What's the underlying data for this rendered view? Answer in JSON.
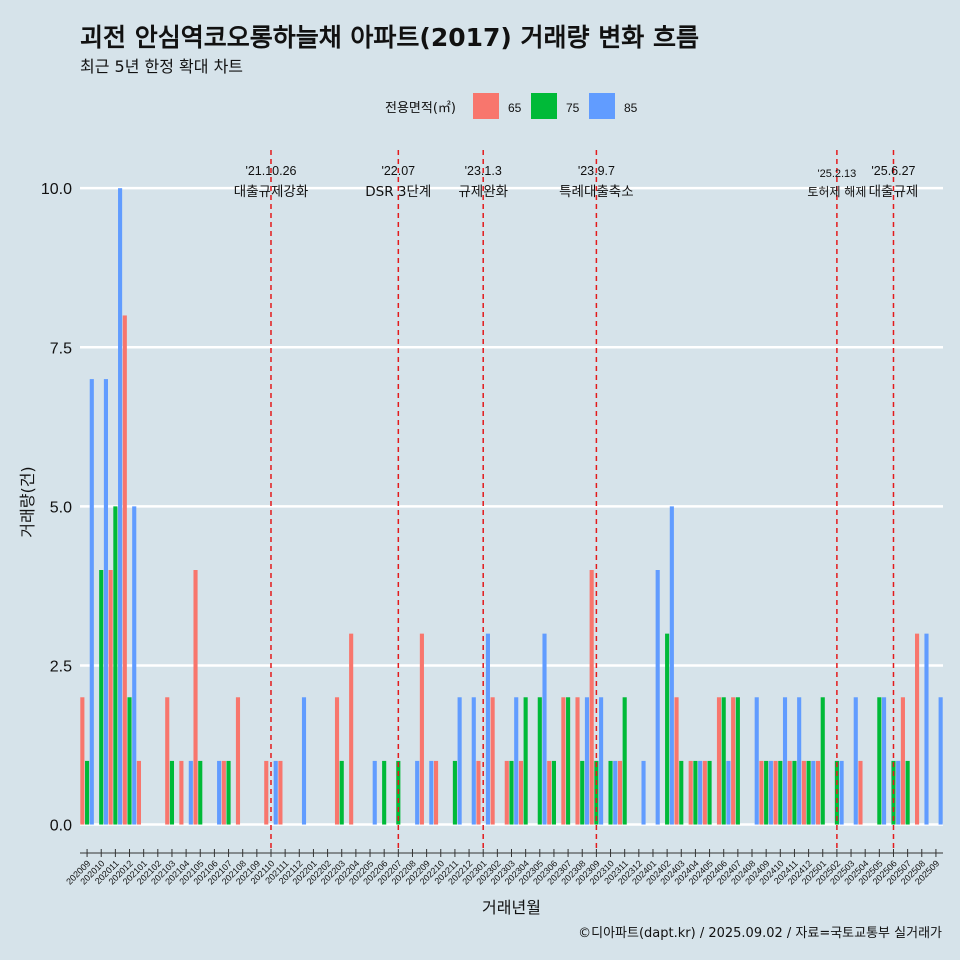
{
  "title": "괴전 안심역코오롱하늘채 아파트(2017) 거래량 변화 흐름",
  "subtitle": "최근 5년 한정 확대 차트",
  "caption": "©디아파트(dapt.kr) / 2025.09.02 / 자료=국토교통부 실거래가",
  "colors": {
    "65": "#f8766d",
    "75": "#00ba38",
    "85": "#619cff",
    "background": "#d6e3ea",
    "grid": "#ffffff",
    "event_line": "#e31a1c"
  },
  "chart_data": {
    "type": "bar",
    "xlabel": "거래년월",
    "ylabel": "거래량(건)",
    "ylim": [
      -0.4,
      10.6
    ],
    "yticks": [
      "0.0",
      "2.5",
      "5.0",
      "7.5",
      "10.0"
    ],
    "legend": {
      "title": "전용면적(㎡)",
      "position": "top",
      "entries": [
        "65",
        "75",
        "85"
      ]
    },
    "categories": [
      "202009",
      "202010",
      "202011",
      "202012",
      "202101",
      "202102",
      "202103",
      "202104",
      "202105",
      "202106",
      "202107",
      "202108",
      "202109",
      "202110",
      "202111",
      "202112",
      "202201",
      "202202",
      "202203",
      "202204",
      "202205",
      "202206",
      "202207",
      "202208",
      "202209",
      "202210",
      "202211",
      "202212",
      "202301",
      "202302",
      "202303",
      "202304",
      "202305",
      "202306",
      "202307",
      "202308",
      "202309",
      "202310",
      "202311",
      "202312",
      "202401",
      "202402",
      "202403",
      "202404",
      "202405",
      "202406",
      "202407",
      "202408",
      "202409",
      "202410",
      "202411",
      "202412",
      "202501",
      "202502",
      "202503",
      "202504",
      "202505",
      "202506",
      "202507",
      "202508",
      "202509"
    ],
    "series": [
      {
        "name": "65",
        "values": [
          2,
          0,
          4,
          8,
          1,
          0,
          2,
          1,
          4,
          0,
          1,
          2,
          0,
          1,
          1,
          0,
          0,
          0,
          2,
          3,
          0,
          0,
          0,
          0,
          3,
          1,
          0,
          0,
          1,
          2,
          1,
          1,
          0,
          1,
          2,
          2,
          4,
          0,
          1,
          0,
          0,
          0,
          2,
          1,
          1,
          2,
          2,
          0,
          1,
          1,
          1,
          1,
          1,
          0,
          0,
          1,
          0,
          0,
          2,
          3,
          0
        ]
      },
      {
        "name": "75",
        "values": [
          1,
          4,
          5,
          2,
          0,
          0,
          1,
          0,
          1,
          0,
          1,
          0,
          0,
          0,
          0,
          0,
          0,
          0,
          1,
          0,
          0,
          1,
          1,
          0,
          0,
          0,
          1,
          0,
          0,
          0,
          1,
          2,
          2,
          1,
          2,
          1,
          1,
          1,
          2,
          0,
          0,
          3,
          1,
          1,
          1,
          2,
          2,
          0,
          1,
          1,
          1,
          1,
          2,
          1,
          0,
          0,
          2,
          1,
          1,
          0,
          0
        ]
      },
      {
        "name": "85",
        "values": [
          7,
          7,
          10,
          5,
          0,
          0,
          0,
          1,
          0,
          1,
          0,
          0,
          0,
          1,
          0,
          2,
          0,
          0,
          0,
          0,
          1,
          0,
          0,
          1,
          1,
          0,
          2,
          2,
          3,
          0,
          2,
          0,
          3,
          0,
          0,
          2,
          2,
          1,
          0,
          1,
          4,
          5,
          0,
          1,
          0,
          1,
          0,
          2,
          1,
          2,
          2,
          1,
          0,
          1,
          2,
          0,
          2,
          1,
          0,
          3,
          2
        ]
      }
    ],
    "events": [
      {
        "date": "'21.10.26",
        "label": "대출규제강화",
        "x": 13.5
      },
      {
        "date": "'22.07",
        "label": "DSR 3단계",
        "x": 22.5
      },
      {
        "date": "'23.1.3",
        "label": "규제완화",
        "x": 28.5
      },
      {
        "date": "'23.9.7",
        "label": "특례대출축소",
        "x": 36.5
      },
      {
        "date": "'25.2.13",
        "label": "토허제 해제",
        "x": 53.5
      },
      {
        "date": "'25.6.27",
        "label": "대출규제",
        "x": 57.5
      }
    ]
  }
}
